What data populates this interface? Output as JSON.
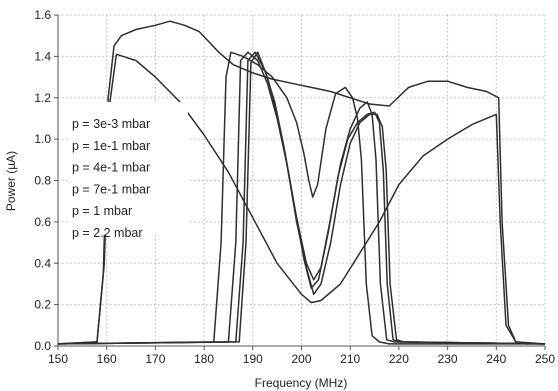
{
  "chart_data": {
    "type": "line",
    "xlabel": "Frequency (MHz)",
    "ylabel": "Power (µA)",
    "xlim": [
      150,
      250
    ],
    "ylim": [
      0,
      1.6
    ],
    "xticks": [
      "150",
      "160",
      "170",
      "180",
      "190",
      "200",
      "210",
      "220",
      "230",
      "240",
      "250"
    ],
    "yticks": [
      "0.0",
      "0.2",
      "0.4",
      "0.6",
      "0.8",
      "1.0",
      "1.2",
      "1.4",
      "1.6"
    ],
    "grid": true,
    "legend_position": "left",
    "line_color": "#2f2f2f",
    "legend": [
      "p = 3e-3 mbar",
      "p = 1e-1 mbar",
      "p = 4e-1 mbar",
      "p = 7e-1 mbar",
      "p = 1 mbar",
      "p = 2.2 mbar"
    ],
    "series": [
      {
        "x": [
          150,
          158,
          159.3,
          160.3,
          161.5,
          163,
          166,
          170,
          173,
          176,
          179,
          181,
          183,
          186,
          190,
          194,
          198,
          202,
          206,
          210,
          214,
          218,
          222,
          226,
          230,
          234,
          238,
          240.5,
          241.2,
          242.5,
          244,
          246,
          250
        ],
        "y": [
          0.01,
          0.02,
          0.35,
          1.2,
          1.45,
          1.5,
          1.53,
          1.55,
          1.57,
          1.55,
          1.52,
          1.47,
          1.42,
          1.36,
          1.32,
          1.29,
          1.27,
          1.25,
          1.23,
          1.2,
          1.17,
          1.16,
          1.25,
          1.28,
          1.28,
          1.25,
          1.23,
          1.2,
          0.6,
          0.1,
          0.02,
          0.01,
          0.01
        ]
      },
      {
        "x": [
          150,
          158,
          159.5,
          160.5,
          162,
          166,
          170,
          175,
          180,
          185,
          190,
          195,
          200,
          202,
          204,
          208,
          212,
          216,
          220,
          225,
          230,
          235,
          238,
          240,
          240.8,
          242,
          244,
          250
        ],
        "y": [
          0.01,
          0.02,
          0.4,
          1.15,
          1.41,
          1.38,
          1.3,
          1.18,
          1.02,
          0.84,
          0.62,
          0.4,
          0.25,
          0.21,
          0.22,
          0.3,
          0.45,
          0.6,
          0.78,
          0.92,
          1.0,
          1.07,
          1.1,
          1.12,
          0.6,
          0.1,
          0.02,
          0.01
        ]
      },
      {
        "x": [
          150,
          182,
          183.5,
          184.5,
          185.5,
          188,
          191,
          194,
          197,
          199,
          200.5,
          201.5,
          202.3,
          203.3,
          205,
          207,
          209,
          210.5,
          211.5,
          212.3,
          213.3,
          214.5,
          216,
          218,
          250
        ],
        "y": [
          0.01,
          0.02,
          0.5,
          1.3,
          1.42,
          1.4,
          1.36,
          1.3,
          1.2,
          1.08,
          0.93,
          0.8,
          0.72,
          0.78,
          1.05,
          1.22,
          1.25,
          1.2,
          1.1,
          0.9,
          0.3,
          0.05,
          0.02,
          0.01,
          0.01
        ]
      },
      {
        "x": [
          150,
          185,
          186.5,
          187.5,
          189,
          191,
          193,
          195,
          197,
          199,
          201,
          202.5,
          204,
          206,
          208,
          210,
          212,
          213.5,
          214.5,
          215.3,
          216.2,
          217.5,
          219,
          250
        ],
        "y": [
          0.01,
          0.02,
          0.5,
          1.38,
          1.42,
          1.38,
          1.27,
          1.1,
          0.88,
          0.62,
          0.4,
          0.32,
          0.38,
          0.62,
          0.88,
          1.05,
          1.15,
          1.18,
          1.12,
          0.9,
          0.3,
          0.03,
          0.02,
          0.01
        ]
      },
      {
        "x": [
          150,
          186.5,
          188,
          189,
          190.5,
          192.5,
          194.5,
          196.5,
          198.5,
          200.5,
          202,
          203.5,
          205.5,
          207.5,
          209.5,
          211.5,
          213.5,
          215,
          216,
          216.8,
          217.6,
          218.8,
          220,
          250
        ],
        "y": [
          0.01,
          0.02,
          0.5,
          1.38,
          1.42,
          1.33,
          1.18,
          0.95,
          0.68,
          0.42,
          0.28,
          0.32,
          0.55,
          0.82,
          1.0,
          1.08,
          1.12,
          1.13,
          1.08,
          0.85,
          0.3,
          0.03,
          0.02,
          0.01
        ]
      },
      {
        "x": [
          150,
          187.2,
          188.6,
          189.6,
          191,
          193,
          195,
          197,
          199,
          201,
          202.5,
          204,
          206,
          208,
          210,
          212,
          214,
          215.5,
          216.6,
          217.4,
          218.2,
          219.5,
          221,
          250
        ],
        "y": [
          0.01,
          0.02,
          0.5,
          1.37,
          1.42,
          1.3,
          1.12,
          0.88,
          0.6,
          0.38,
          0.25,
          0.3,
          0.5,
          0.78,
          0.98,
          1.08,
          1.12,
          1.12,
          1.06,
          0.85,
          0.3,
          0.03,
          0.02,
          0.01
        ]
      }
    ]
  }
}
